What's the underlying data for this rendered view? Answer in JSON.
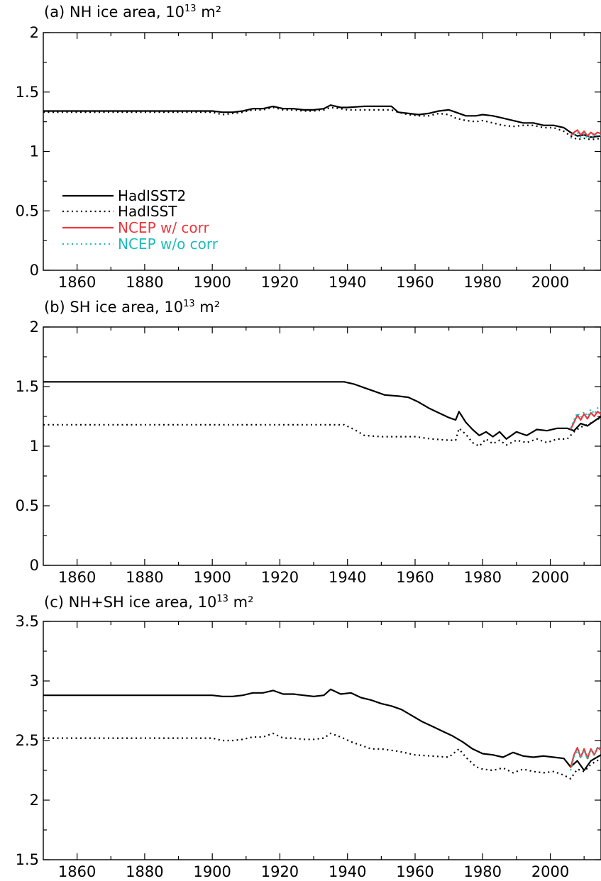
{
  "chart_data": [
    {
      "type": "line",
      "title_prefix": "(a) NH ice area, 10",
      "title_exponent": "13",
      "title_unit": " m²",
      "ylim": [
        0,
        2
      ],
      "yticks": [
        "0",
        "0.5",
        "1",
        "1.5",
        "2"
      ],
      "xlim": [
        1850,
        2015
      ],
      "xticks": [
        "1860",
        "1880",
        "1900",
        "1920",
        "1940",
        "1960",
        "1980",
        "2000"
      ],
      "series": [
        {
          "key": "hadisst2",
          "color": "#000000",
          "style": "solid",
          "x": [
            1850,
            1870,
            1890,
            1900,
            1903,
            1906,
            1909,
            1912,
            1915,
            1918,
            1921,
            1924,
            1927,
            1930,
            1933,
            1935,
            1938,
            1940,
            1945,
            1950,
            1953,
            1955,
            1958,
            1961,
            1964,
            1967,
            1970,
            1972,
            1975,
            1978,
            1980,
            1983,
            1986,
            1989,
            1992,
            1995,
            1998,
            2001,
            2004,
            2006,
            2008,
            2010,
            2012,
            2015
          ],
          "y": [
            1.34,
            1.34,
            1.34,
            1.34,
            1.33,
            1.33,
            1.34,
            1.36,
            1.36,
            1.38,
            1.36,
            1.36,
            1.35,
            1.35,
            1.36,
            1.39,
            1.37,
            1.37,
            1.38,
            1.38,
            1.38,
            1.33,
            1.32,
            1.31,
            1.32,
            1.34,
            1.35,
            1.33,
            1.3,
            1.3,
            1.31,
            1.3,
            1.28,
            1.26,
            1.24,
            1.24,
            1.22,
            1.22,
            1.2,
            1.16,
            1.13,
            1.14,
            1.12,
            1.13
          ]
        },
        {
          "key": "hadisst",
          "color": "#000000",
          "style": "dotted",
          "x": [
            1850,
            1870,
            1890,
            1900,
            1903,
            1906,
            1909,
            1912,
            1915,
            1918,
            1921,
            1924,
            1927,
            1930,
            1933,
            1935,
            1938,
            1940,
            1945,
            1950,
            1953,
            1955,
            1958,
            1961,
            1964,
            1967,
            1970,
            1972,
            1975,
            1978,
            1980,
            1983,
            1986,
            1989,
            1992,
            1995,
            1998,
            2001,
            2004,
            2006,
            2008,
            2010,
            2012,
            2015
          ],
          "y": [
            1.33,
            1.33,
            1.33,
            1.33,
            1.31,
            1.32,
            1.33,
            1.35,
            1.35,
            1.37,
            1.35,
            1.35,
            1.34,
            1.34,
            1.35,
            1.37,
            1.36,
            1.35,
            1.35,
            1.35,
            1.35,
            1.33,
            1.31,
            1.3,
            1.3,
            1.32,
            1.31,
            1.28,
            1.26,
            1.25,
            1.26,
            1.24,
            1.22,
            1.21,
            1.22,
            1.22,
            1.2,
            1.2,
            1.17,
            1.13,
            1.1,
            1.11,
            1.1,
            1.11
          ]
        },
        {
          "key": "ncep_corr",
          "color": "#e8383d",
          "style": "solid",
          "x": [
            2006,
            2007,
            2008,
            2009,
            2010,
            2011,
            2012,
            2013,
            2014,
            2015
          ],
          "y": [
            1.13,
            1.16,
            1.18,
            1.14,
            1.17,
            1.13,
            1.16,
            1.14,
            1.16,
            1.15
          ]
        },
        {
          "key": "ncep_nocorr",
          "color": "#1fbcbc",
          "style": "dotted",
          "x": [
            2006,
            2007,
            2008,
            2009,
            2010,
            2011,
            2012,
            2013,
            2014,
            2015
          ],
          "y": [
            1.11,
            1.14,
            1.16,
            1.12,
            1.15,
            1.11,
            1.14,
            1.12,
            1.14,
            1.13
          ]
        }
      ]
    },
    {
      "type": "line",
      "title_prefix": "(b) SH ice area, 10",
      "title_exponent": "13",
      "title_unit": " m²",
      "ylim": [
        0,
        2
      ],
      "yticks": [
        "0",
        "0.5",
        "1",
        "1.5",
        "2"
      ],
      "xlim": [
        1850,
        2015
      ],
      "xticks": [
        "1860",
        "1880",
        "1900",
        "1920",
        "1940",
        "1960",
        "1980",
        "2000"
      ],
      "series": [
        {
          "key": "hadisst2",
          "color": "#000000",
          "style": "solid",
          "x": [
            1850,
            1900,
            1939,
            1942,
            1945,
            1948,
            1951,
            1955,
            1958,
            1961,
            1964,
            1967,
            1970,
            1972,
            1973,
            1975,
            1977,
            1979,
            1981,
            1983,
            1985,
            1987,
            1990,
            1993,
            1996,
            1999,
            2002,
            2005,
            2007,
            2009,
            2011,
            2013,
            2015
          ],
          "y": [
            1.54,
            1.54,
            1.54,
            1.52,
            1.49,
            1.46,
            1.43,
            1.42,
            1.41,
            1.37,
            1.32,
            1.28,
            1.24,
            1.22,
            1.29,
            1.2,
            1.14,
            1.09,
            1.12,
            1.08,
            1.12,
            1.06,
            1.12,
            1.09,
            1.14,
            1.13,
            1.15,
            1.15,
            1.13,
            1.19,
            1.17,
            1.21,
            1.25
          ]
        },
        {
          "key": "hadisst",
          "color": "#000000",
          "style": "dotted",
          "x": [
            1850,
            1900,
            1939,
            1942,
            1945,
            1950,
            1955,
            1960,
            1965,
            1970,
            1972,
            1973,
            1975,
            1977,
            1979,
            1981,
            1983,
            1985,
            1987,
            1990,
            1993,
            1996,
            1999,
            2002,
            2005,
            2007,
            2009,
            2011,
            2013,
            2015
          ],
          "y": [
            1.18,
            1.18,
            1.18,
            1.14,
            1.09,
            1.08,
            1.08,
            1.08,
            1.06,
            1.05,
            1.05,
            1.15,
            1.1,
            1.03,
            1.0,
            1.06,
            1.02,
            1.05,
            1.01,
            1.05,
            1.03,
            1.06,
            1.03,
            1.06,
            1.06,
            1.12,
            1.16,
            1.18,
            1.21,
            1.24
          ]
        },
        {
          "key": "ncep_corr",
          "color": "#e8383d",
          "style": "solid",
          "x": [
            2006,
            2007,
            2008,
            2009,
            2010,
            2011,
            2012,
            2013,
            2014,
            2015
          ],
          "y": [
            1.14,
            1.2,
            1.26,
            1.22,
            1.27,
            1.23,
            1.28,
            1.25,
            1.29,
            1.27
          ]
        },
        {
          "key": "ncep_nocorr",
          "color": "#1fbcbc",
          "style": "dotted",
          "x": [
            2006,
            2007,
            2008,
            2009,
            2010,
            2011,
            2012,
            2013,
            2014,
            2015
          ],
          "y": [
            1.15,
            1.22,
            1.28,
            1.24,
            1.29,
            1.25,
            1.31,
            1.27,
            1.32,
            1.29
          ]
        }
      ]
    },
    {
      "type": "line",
      "title_prefix": "(c) NH+SH ice area, 10",
      "title_exponent": "13",
      "title_unit": " m²",
      "ylim": [
        1.5,
        3.5
      ],
      "yticks": [
        "1.5",
        "2",
        "2.5",
        "3",
        "3.5"
      ],
      "xlim": [
        1850,
        2015
      ],
      "xticks": [
        "1860",
        "1880",
        "1900",
        "1920",
        "1940",
        "1960",
        "1980",
        "2000"
      ],
      "series": [
        {
          "key": "hadisst2",
          "color": "#000000",
          "style": "solid",
          "x": [
            1850,
            1900,
            1903,
            1906,
            1909,
            1912,
            1915,
            1918,
            1921,
            1924,
            1927,
            1930,
            1933,
            1935,
            1938,
            1941,
            1944,
            1947,
            1950,
            1953,
            1956,
            1959,
            1962,
            1965,
            1968,
            1971,
            1974,
            1977,
            1980,
            1983,
            1986,
            1989,
            1992,
            1995,
            1998,
            2001,
            2004,
            2006,
            2008,
            2010,
            2012,
            2015
          ],
          "y": [
            2.88,
            2.88,
            2.87,
            2.87,
            2.88,
            2.9,
            2.9,
            2.92,
            2.89,
            2.89,
            2.88,
            2.87,
            2.88,
            2.93,
            2.89,
            2.9,
            2.86,
            2.84,
            2.81,
            2.79,
            2.76,
            2.71,
            2.66,
            2.62,
            2.58,
            2.54,
            2.49,
            2.43,
            2.39,
            2.38,
            2.36,
            2.4,
            2.37,
            2.36,
            2.37,
            2.36,
            2.35,
            2.28,
            2.33,
            2.25,
            2.33,
            2.38
          ]
        },
        {
          "key": "hadisst",
          "color": "#000000",
          "style": "dotted",
          "x": [
            1850,
            1900,
            1903,
            1906,
            1909,
            1912,
            1915,
            1918,
            1921,
            1924,
            1927,
            1930,
            1933,
            1935,
            1938,
            1941,
            1944,
            1947,
            1950,
            1955,
            1960,
            1965,
            1970,
            1973,
            1975,
            1978,
            1980,
            1983,
            1986,
            1989,
            1992,
            1995,
            1998,
            2001,
            2004,
            2006,
            2008,
            2010,
            2012,
            2015
          ],
          "y": [
            2.52,
            2.52,
            2.5,
            2.5,
            2.51,
            2.53,
            2.53,
            2.56,
            2.52,
            2.52,
            2.51,
            2.51,
            2.52,
            2.56,
            2.53,
            2.49,
            2.46,
            2.43,
            2.43,
            2.41,
            2.38,
            2.37,
            2.36,
            2.43,
            2.36,
            2.28,
            2.26,
            2.25,
            2.27,
            2.23,
            2.26,
            2.24,
            2.23,
            2.24,
            2.21,
            2.18,
            2.26,
            2.24,
            2.3,
            2.35
          ]
        },
        {
          "key": "ncep_corr",
          "color": "#e8383d",
          "style": "solid",
          "x": [
            2006,
            2007,
            2008,
            2009,
            2010,
            2011,
            2012,
            2013,
            2014,
            2015
          ],
          "y": [
            2.27,
            2.38,
            2.44,
            2.36,
            2.43,
            2.35,
            2.43,
            2.38,
            2.44,
            2.42
          ]
        },
        {
          "key": "ncep_nocorr",
          "color": "#1fbcbc",
          "style": "dotted",
          "x": [
            2006,
            2007,
            2008,
            2009,
            2010,
            2011,
            2012,
            2013,
            2014,
            2015
          ],
          "y": [
            2.25,
            2.36,
            2.42,
            2.35,
            2.42,
            2.34,
            2.42,
            2.37,
            2.45,
            2.43
          ]
        }
      ]
    }
  ],
  "legend": {
    "placement": "lower-left of panel (a)",
    "items": [
      {
        "key": "hadisst2",
        "label": "HadISST2",
        "color": "#000000",
        "style": "solid"
      },
      {
        "key": "hadisst",
        "label": "HadISST",
        "color": "#000000",
        "style": "dotted"
      },
      {
        "key": "ncep_corr",
        "label": "NCEP w/ corr",
        "color": "#e8383d",
        "style": "solid"
      },
      {
        "key": "ncep_nocorr",
        "label": "NCEP w/o corr",
        "color": "#1fbcbc",
        "style": "dotted"
      }
    ]
  }
}
